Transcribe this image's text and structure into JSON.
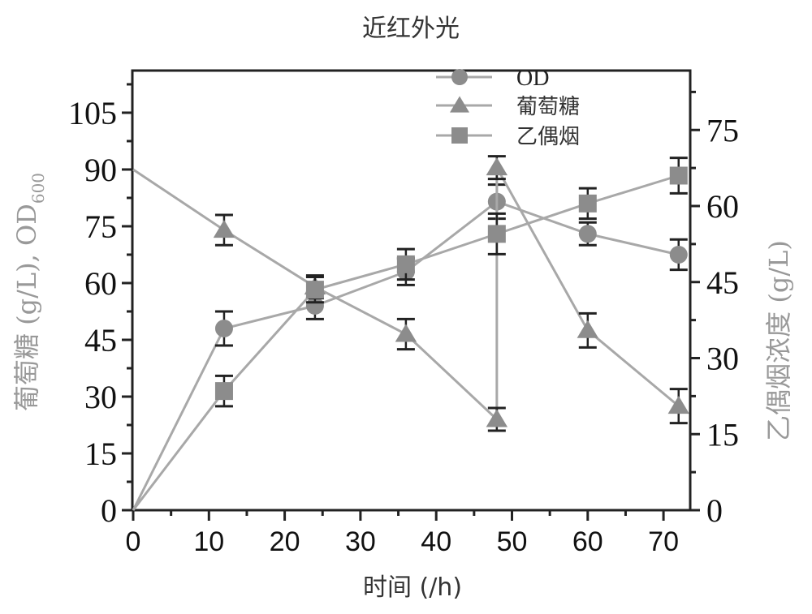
{
  "chart_data": {
    "type": "line",
    "title": "近红外光",
    "xlabel": "时间 (/h)",
    "ylabel_left": "葡萄糖 (g/L), OD600",
    "ylabel_left_main": "葡萄糖 (g/L), OD",
    "ylabel_left_sub": "600",
    "ylabel_right": "乙偶烟浓度 (g/L)",
    "xlim": [
      0,
      73.5
    ],
    "ylim_left": [
      0,
      109
    ],
    "ylim_right": [
      0,
      81.7
    ],
    "xticks": [
      0,
      10,
      20,
      30,
      40,
      50,
      60,
      70
    ],
    "yticks_left": [
      0,
      15,
      30,
      45,
      60,
      75,
      90,
      105
    ],
    "yticks_right": [
      0,
      15,
      30,
      45,
      60,
      75
    ],
    "grid": false,
    "legend_position": "upper-center-right",
    "series": [
      {
        "name": "OD",
        "marker": "circle",
        "axis": "left",
        "color": "#8c8c8c",
        "x": [
          0,
          12,
          24,
          36,
          48,
          60,
          72
        ],
        "y": [
          0,
          48,
          54,
          63,
          81.5,
          73,
          67.5
        ],
        "err": [
          0,
          4.5,
          3.5,
          3.5,
          4.5,
          3,
          4
        ]
      },
      {
        "name": "葡萄糖",
        "marker": "triangle",
        "axis": "left",
        "color": "#8c8c8c",
        "x": [
          0,
          12,
          24,
          36,
          48,
          48,
          60,
          72
        ],
        "y": [
          90,
          74,
          59,
          46.5,
          24,
          90.5,
          47.5,
          27.5
        ],
        "err": [
          0,
          4,
          3,
          4,
          3,
          3,
          4.5,
          4.5
        ]
      },
      {
        "name": "乙偶烟",
        "marker": "square",
        "axis": "right",
        "color": "#8c8c8c",
        "x": [
          0,
          12,
          24,
          36,
          48,
          60,
          72
        ],
        "y": [
          0,
          23.5,
          43.5,
          48.5,
          54.5,
          60.5,
          66
        ],
        "err": [
          0,
          3,
          2.5,
          3,
          4,
          3,
          3.5
        ]
      }
    ],
    "legend": [
      {
        "label": "OD",
        "marker": "circle"
      },
      {
        "label": "葡萄糖",
        "marker": "triangle"
      },
      {
        "label": "乙偶烟",
        "marker": "square"
      }
    ]
  }
}
